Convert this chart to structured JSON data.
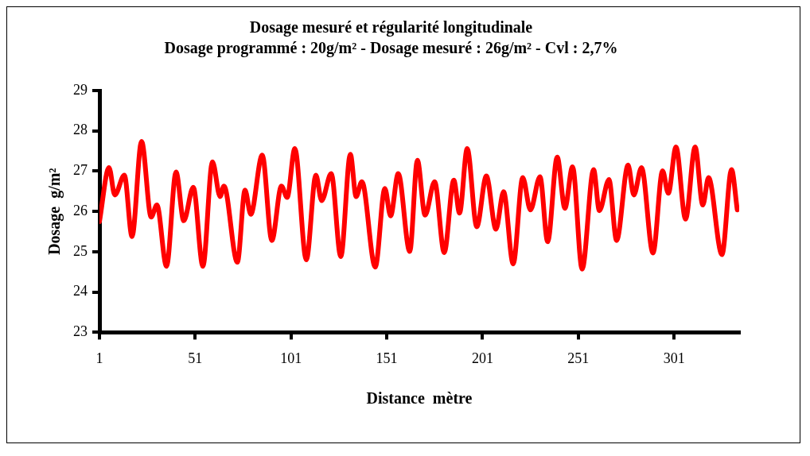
{
  "chart_data": {
    "type": "line",
    "title": "Dosage mesuré et régularité longitudinale",
    "subtitle": "Dosage programmé : 20g/m² - Dosage mesuré : 26g/m² - Cvl : 2,7%",
    "xlabel": "Distance  mètre",
    "ylabel": "Dosage  g/m²",
    "x": [
      1,
      6,
      9,
      14,
      18,
      23,
      28,
      31,
      36,
      41,
      45,
      50,
      55,
      60,
      64,
      66,
      73,
      77,
      80,
      86,
      91,
      96,
      99,
      103,
      109,
      114,
      117,
      122,
      127,
      132,
      135,
      138,
      145,
      150,
      153,
      157,
      163,
      167,
      171,
      176,
      181,
      186,
      189,
      193,
      198,
      203,
      208,
      212,
      217,
      222,
      226,
      231,
      235,
      240,
      244,
      248,
      253,
      259,
      262,
      267,
      271,
      277,
      280,
      284,
      290,
      295,
      298,
      302,
      307,
      312,
      316,
      319,
      326,
      331,
      334
    ],
    "series": [
      {
        "color": "#ff0000",
        "values": [
          25.75,
          27.09,
          26.41,
          26.9,
          25.38,
          27.74,
          25.86,
          26.16,
          24.64,
          26.98,
          25.77,
          26.6,
          24.64,
          27.23,
          26.37,
          26.63,
          24.74,
          26.53,
          25.93,
          27.4,
          25.28,
          26.63,
          26.35,
          27.56,
          24.8,
          26.9,
          26.27,
          26.94,
          24.88,
          27.42,
          26.37,
          26.74,
          24.62,
          26.57,
          25.89,
          26.94,
          25.01,
          27.27,
          25.91,
          26.74,
          24.98,
          26.78,
          25.96,
          27.56,
          25.62,
          26.88,
          25.56,
          26.49,
          24.7,
          26.84,
          26.04,
          26.86,
          25.25,
          27.35,
          26.08,
          27.11,
          24.57,
          27.04,
          26.02,
          26.79,
          25.28,
          27.15,
          26.41,
          27.09,
          24.97,
          27.01,
          26.45,
          27.6,
          25.81,
          27.6,
          26.16,
          26.84,
          24.93,
          27.04,
          26.04
        ]
      }
    ],
    "xlim": [
      1,
      335
    ],
    "xticks": [
      1,
      51,
      101,
      151,
      201,
      251,
      301
    ],
    "ylim": [
      23,
      29
    ],
    "yticks": [
      23,
      24,
      25,
      26,
      27,
      28,
      29
    ],
    "grid": false,
    "legend": false,
    "marker": "none",
    "line_style": "solid"
  }
}
